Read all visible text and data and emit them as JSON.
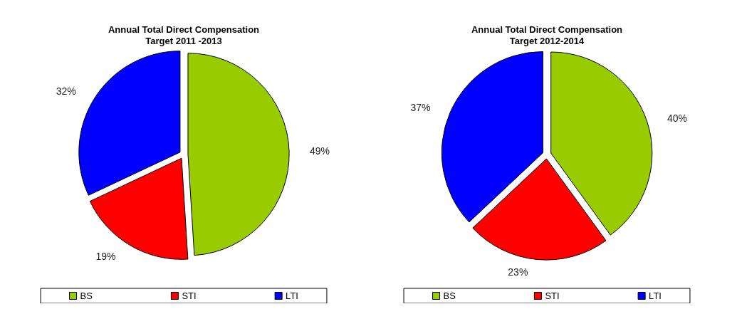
{
  "chart_data": [
    {
      "type": "pie",
      "title": "Annual Total Direct Compensation\nTarget 2011 -2013",
      "categories": [
        "BS",
        "STI",
        "LTI"
      ],
      "values": [
        49,
        19,
        32
      ],
      "value_labels": [
        "49%",
        "19%",
        "32%"
      ],
      "colors": [
        "#99cc00",
        "#ff0000",
        "#0000ff"
      ],
      "legend": "bottom"
    },
    {
      "type": "pie",
      "title": "Annual Total Direct Compensation\nTarget 2012-2014",
      "categories": [
        "BS",
        "STI",
        "LTI"
      ],
      "values": [
        40,
        23,
        37
      ],
      "value_labels": [
        "40%",
        "23%",
        "37%"
      ],
      "colors": [
        "#99cc00",
        "#ff0000",
        "#0000ff"
      ],
      "legend": "bottom"
    }
  ]
}
